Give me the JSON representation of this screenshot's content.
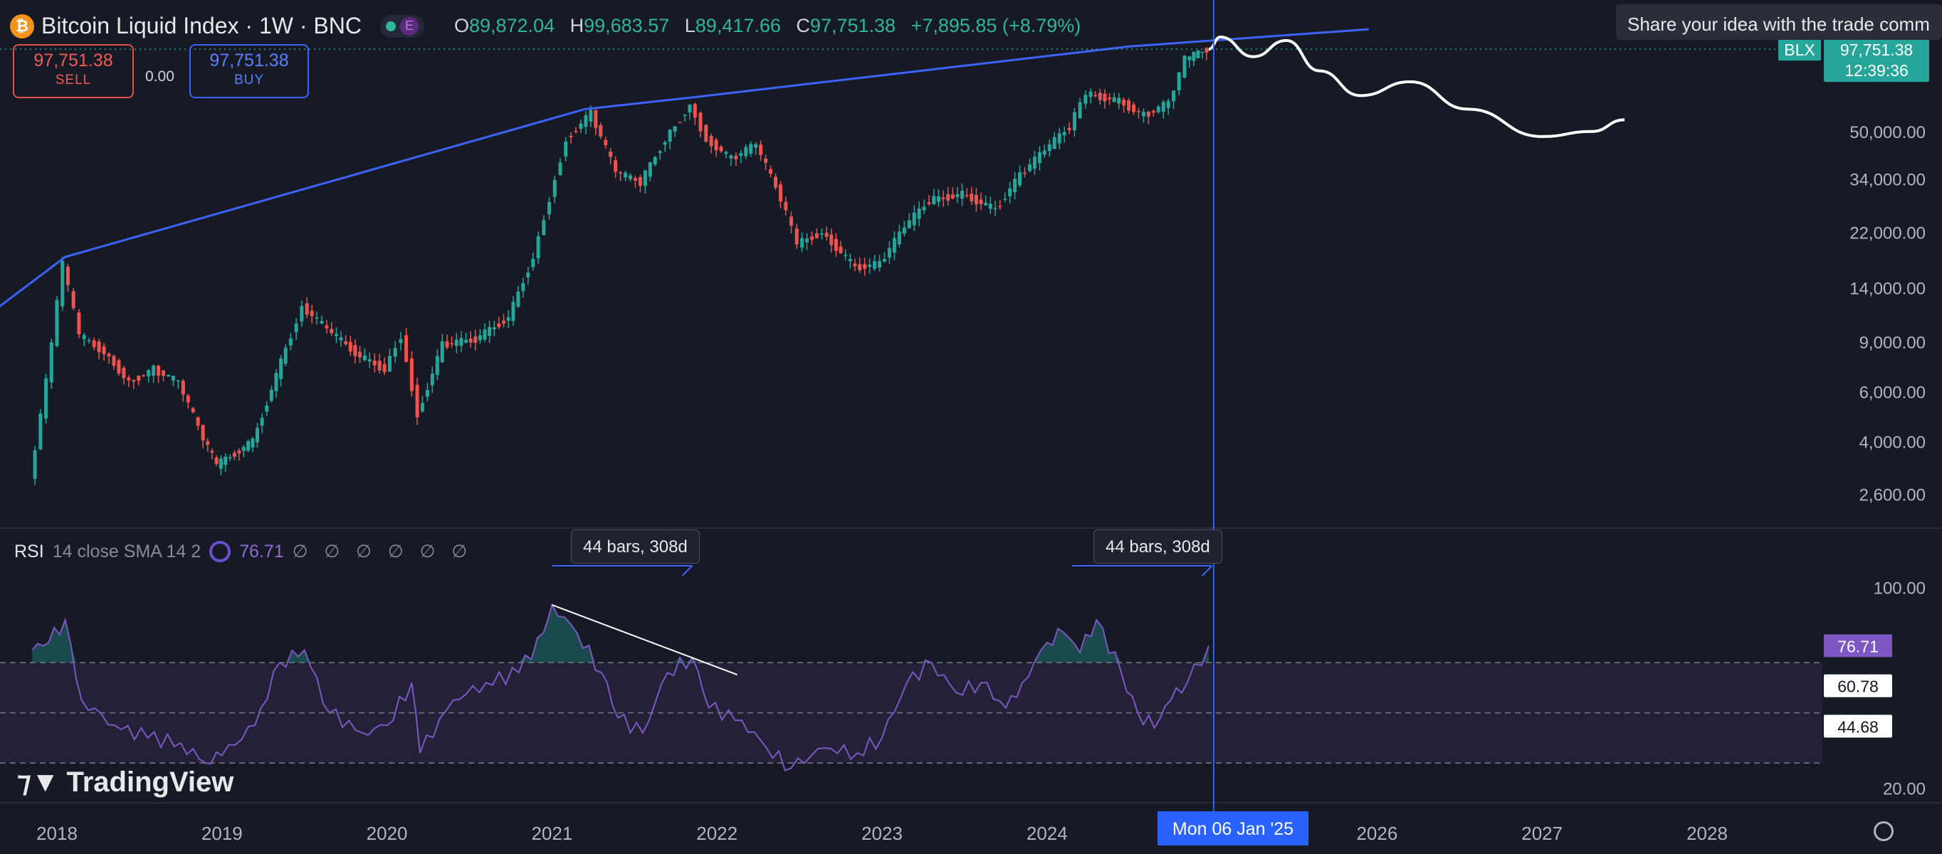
{
  "header": {
    "title": "Bitcoin Liquid Index · 1W · BNC",
    "ohlc": {
      "o_label": "O",
      "o": "89,872.04",
      "h_label": "H",
      "h": "99,683.57",
      "l_label": "L",
      "l": "89,417.66",
      "c_label": "C",
      "c": "97,751.38",
      "change": "+7,895.85 (+8.79%)"
    },
    "e_badge": "E"
  },
  "trade": {
    "sell_price": "97,751.38",
    "sell_label": "SELL",
    "spread": "0.00",
    "buy_price": "97,751.38",
    "buy_label": "BUY"
  },
  "tooltip": "Share your idea with the trade comm",
  "price_tag": {
    "symbol": "BLX",
    "price": "97,751.38",
    "countdown": "12:39:36"
  },
  "rsi": {
    "name": "RSI",
    "params": "14 close SMA 14 2",
    "value": "76.71",
    "dashes": "∅ ∅ ∅ ∅ ∅ ∅",
    "tags": [
      "76.71",
      "60.78",
      "44.68"
    ]
  },
  "measures": [
    "44 bars, 308d",
    "44 bars, 308d"
  ],
  "cursor_date": "Mon 06 Jan '25",
  "branding": "TradingView",
  "colors": {
    "up": "#26a69a",
    "down": "#ef5350",
    "trend": "#3d63ff",
    "rsi": "#7e57c2",
    "cursor": "#2962ff",
    "background": "#161a25"
  },
  "chart_data": [
    {
      "type": "candlestick",
      "title": "Bitcoin Liquid Index · 1W · BNC",
      "scale": "log",
      "ylim": [
        2000,
        130000
      ],
      "y_ticks": [
        "50,000.00",
        "34,000.00",
        "22,000.00",
        "14,000.00",
        "9,000.00",
        "6,000.00",
        "4,000.00",
        "2,600.00"
      ],
      "x_ticks": [
        "2018",
        "2019",
        "2020",
        "2021",
        "2022",
        "2023",
        "2024",
        "2025",
        "2026",
        "2027",
        "2028"
      ],
      "series": [
        {
          "name": "BLX",
          "points": [
            {
              "x": 2017.85,
              "y": 2900
            },
            {
              "x": 2017.95,
              "y": 6500
            },
            {
              "x": 2018.05,
              "y": 17000
            },
            {
              "x": 2018.15,
              "y": 9500
            },
            {
              "x": 2018.3,
              "y": 8300
            },
            {
              "x": 2018.45,
              "y": 6500
            },
            {
              "x": 2018.6,
              "y": 7200
            },
            {
              "x": 2018.75,
              "y": 6500
            },
            {
              "x": 2018.9,
              "y": 4100
            },
            {
              "x": 2018.98,
              "y": 3300
            },
            {
              "x": 2019.2,
              "y": 4000
            },
            {
              "x": 2019.4,
              "y": 8500
            },
            {
              "x": 2019.5,
              "y": 12000
            },
            {
              "x": 2019.65,
              "y": 10000
            },
            {
              "x": 2019.85,
              "y": 8000
            },
            {
              "x": 2020.0,
              "y": 7200
            },
            {
              "x": 2020.1,
              "y": 9500
            },
            {
              "x": 2020.2,
              "y": 5000
            },
            {
              "x": 2020.35,
              "y": 8800
            },
            {
              "x": 2020.55,
              "y": 9200
            },
            {
              "x": 2020.75,
              "y": 11000
            },
            {
              "x": 2020.9,
              "y": 18000
            },
            {
              "x": 2021.0,
              "y": 29000
            },
            {
              "x": 2021.1,
              "y": 47000
            },
            {
              "x": 2021.25,
              "y": 58000
            },
            {
              "x": 2021.4,
              "y": 36000
            },
            {
              "x": 2021.55,
              "y": 33000
            },
            {
              "x": 2021.7,
              "y": 47000
            },
            {
              "x": 2021.85,
              "y": 62000
            },
            {
              "x": 2021.95,
              "y": 47000
            },
            {
              "x": 2022.1,
              "y": 40000
            },
            {
              "x": 2022.25,
              "y": 45000
            },
            {
              "x": 2022.4,
              "y": 29000
            },
            {
              "x": 2022.5,
              "y": 20000
            },
            {
              "x": 2022.65,
              "y": 22000
            },
            {
              "x": 2022.85,
              "y": 16500
            },
            {
              "x": 2023.0,
              "y": 17000
            },
            {
              "x": 2023.15,
              "y": 23000
            },
            {
              "x": 2023.3,
              "y": 28500
            },
            {
              "x": 2023.5,
              "y": 30000
            },
            {
              "x": 2023.7,
              "y": 26500
            },
            {
              "x": 2023.85,
              "y": 35000
            },
            {
              "x": 2024.0,
              "y": 43000
            },
            {
              "x": 2024.15,
              "y": 52000
            },
            {
              "x": 2024.25,
              "y": 68000
            },
            {
              "x": 2024.45,
              "y": 64000
            },
            {
              "x": 2024.6,
              "y": 57000
            },
            {
              "x": 2024.75,
              "y": 63000
            },
            {
              "x": 2024.85,
              "y": 90000
            },
            {
              "x": 2024.98,
              "y": 97751
            }
          ]
        },
        {
          "name": "trendline",
          "points": [
            {
              "x": 2017.65,
              "y": 12000
            },
            {
              "x": 2018.05,
              "y": 18000
            },
            {
              "x": 2021.2,
              "y": 60000
            },
            {
              "x": 2021.85,
              "y": 66000
            },
            {
              "x": 2024.5,
              "y": 100000
            },
            {
              "x": 2025.95,
              "y": 115000
            }
          ]
        },
        {
          "name": "projection",
          "points": [
            {
              "x": 2024.98,
              "y": 97751
            },
            {
              "x": 2025.05,
              "y": 108000
            },
            {
              "x": 2025.25,
              "y": 92000
            },
            {
              "x": 2025.45,
              "y": 105000
            },
            {
              "x": 2025.65,
              "y": 82000
            },
            {
              "x": 2025.9,
              "y": 67000
            },
            {
              "x": 2026.2,
              "y": 75000
            },
            {
              "x": 2026.55,
              "y": 60000
            },
            {
              "x": 2027.0,
              "y": 48000
            },
            {
              "x": 2027.3,
              "y": 50000
            },
            {
              "x": 2027.5,
              "y": 55000
            }
          ]
        }
      ]
    },
    {
      "type": "line",
      "title": "RSI",
      "ylim": [
        15,
        110
      ],
      "y_ticks": [
        "100.00",
        "20.00"
      ],
      "bands": [
        30,
        70
      ],
      "series": [
        {
          "name": "RSI",
          "points": [
            {
              "x": 2017.85,
              "y": 75
            },
            {
              "x": 2017.95,
              "y": 78
            },
            {
              "x": 2018.05,
              "y": 87
            },
            {
              "x": 2018.15,
              "y": 55
            },
            {
              "x": 2018.35,
              "y": 45
            },
            {
              "x": 2018.55,
              "y": 40
            },
            {
              "x": 2018.75,
              "y": 38
            },
            {
              "x": 2018.9,
              "y": 30
            },
            {
              "x": 2019.0,
              "y": 33
            },
            {
              "x": 2019.2,
              "y": 45
            },
            {
              "x": 2019.35,
              "y": 70
            },
            {
              "x": 2019.5,
              "y": 75
            },
            {
              "x": 2019.65,
              "y": 50
            },
            {
              "x": 2019.85,
              "y": 42
            },
            {
              "x": 2020.0,
              "y": 45
            },
            {
              "x": 2020.15,
              "y": 62
            },
            {
              "x": 2020.2,
              "y": 34
            },
            {
              "x": 2020.4,
              "y": 55
            },
            {
              "x": 2020.6,
              "y": 62
            },
            {
              "x": 2020.8,
              "y": 66
            },
            {
              "x": 2020.95,
              "y": 82
            },
            {
              "x": 2021.0,
              "y": 93
            },
            {
              "x": 2021.15,
              "y": 82
            },
            {
              "x": 2021.3,
              "y": 66
            },
            {
              "x": 2021.4,
              "y": 48
            },
            {
              "x": 2021.55,
              "y": 42
            },
            {
              "x": 2021.7,
              "y": 66
            },
            {
              "x": 2021.85,
              "y": 72
            },
            {
              "x": 2021.95,
              "y": 52
            },
            {
              "x": 2022.15,
              "y": 47
            },
            {
              "x": 2022.3,
              "y": 36
            },
            {
              "x": 2022.45,
              "y": 28
            },
            {
              "x": 2022.65,
              "y": 36
            },
            {
              "x": 2022.85,
              "y": 34
            },
            {
              "x": 2023.0,
              "y": 40
            },
            {
              "x": 2023.15,
              "y": 62
            },
            {
              "x": 2023.3,
              "y": 70
            },
            {
              "x": 2023.45,
              "y": 58
            },
            {
              "x": 2023.6,
              "y": 62
            },
            {
              "x": 2023.75,
              "y": 52
            },
            {
              "x": 2023.85,
              "y": 62
            },
            {
              "x": 2024.0,
              "y": 78
            },
            {
              "x": 2024.1,
              "y": 82
            },
            {
              "x": 2024.2,
              "y": 74
            },
            {
              "x": 2024.3,
              "y": 87
            },
            {
              "x": 2024.45,
              "y": 66
            },
            {
              "x": 2024.55,
              "y": 50
            },
            {
              "x": 2024.65,
              "y": 44
            },
            {
              "x": 2024.75,
              "y": 55
            },
            {
              "x": 2024.85,
              "y": 62
            },
            {
              "x": 2024.98,
              "y": 76.71
            }
          ]
        },
        {
          "name": "divergence",
          "points": [
            {
              "x": 2021.0,
              "y": 93
            },
            {
              "x": 2021.95,
              "y": 68
            }
          ]
        }
      ]
    }
  ]
}
